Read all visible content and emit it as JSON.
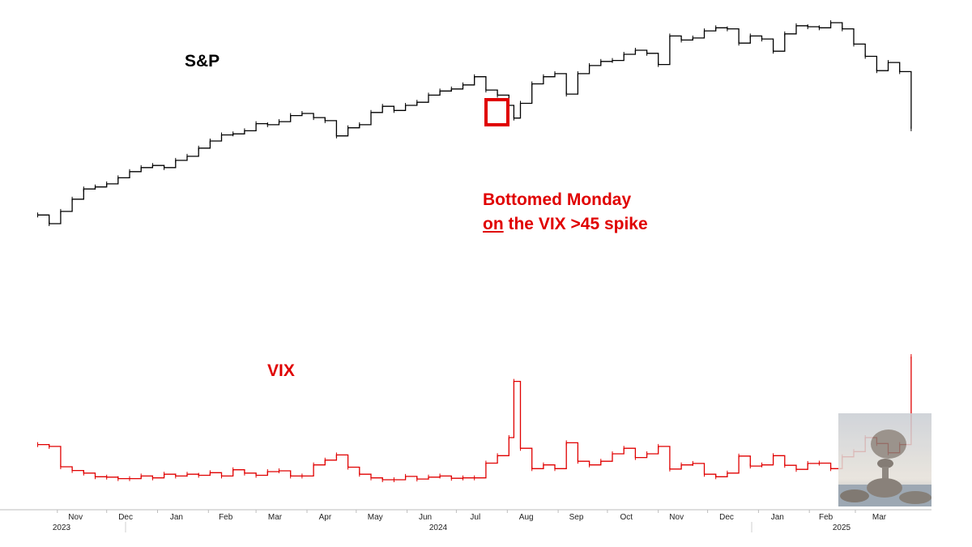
{
  "labels": {
    "sp": "S&P",
    "vix": "VIX",
    "annotation_line1": "Bottomed Monday",
    "annotation_line2_underlined": "on",
    "annotation_line2_rest": " the VIX >45 spike"
  },
  "colors": {
    "sp": "#000000",
    "vix": "#e00000",
    "annotation": "#e00000",
    "highlight_box": "#e00000"
  },
  "axis": {
    "months": [
      "Nov",
      "Dec",
      "Jan",
      "Feb",
      "Mar",
      "Apr",
      "May",
      "Jun",
      "Jul",
      "Aug",
      "Sep",
      "Oct",
      "Nov",
      "Dec",
      "Jan",
      "Feb",
      "Mar"
    ],
    "years": [
      "2023",
      "2024",
      "2025"
    ]
  },
  "thumbnail": {
    "icon": "balanced-rocks-photo"
  },
  "chart_data": {
    "type": "line",
    "x_range": [
      "2023-10",
      "2025-04"
    ],
    "series": [
      {
        "name": "S&P",
        "x": [
          "2023-10-20",
          "2023-10-27",
          "2023-11-03",
          "2023-11-10",
          "2023-11-17",
          "2023-11-24",
          "2023-12-01",
          "2023-12-08",
          "2023-12-15",
          "2023-12-22",
          "2023-12-29",
          "2024-01-05",
          "2024-01-12",
          "2024-01-19",
          "2024-01-26",
          "2024-02-02",
          "2024-02-09",
          "2024-02-16",
          "2024-02-23",
          "2024-03-01",
          "2024-03-08",
          "2024-03-15",
          "2024-03-22",
          "2024-03-29",
          "2024-04-05",
          "2024-04-12",
          "2024-04-19",
          "2024-04-26",
          "2024-05-03",
          "2024-05-10",
          "2024-05-17",
          "2024-05-24",
          "2024-05-31",
          "2024-06-07",
          "2024-06-14",
          "2024-06-21",
          "2024-06-28",
          "2024-07-05",
          "2024-07-12",
          "2024-07-19",
          "2024-07-26",
          "2024-08-02",
          "2024-08-05",
          "2024-08-09",
          "2024-08-16",
          "2024-08-23",
          "2024-08-30",
          "2024-09-06",
          "2024-09-13",
          "2024-09-20",
          "2024-09-27",
          "2024-10-04",
          "2024-10-11",
          "2024-10-18",
          "2024-10-25",
          "2024-11-01",
          "2024-11-08",
          "2024-11-15",
          "2024-11-22",
          "2024-11-29",
          "2024-12-06",
          "2024-12-13",
          "2024-12-20",
          "2024-12-27",
          "2025-01-03",
          "2025-01-10",
          "2025-01-17",
          "2025-01-24",
          "2025-01-31",
          "2025-02-07",
          "2025-02-14",
          "2025-02-21",
          "2025-02-28",
          "2025-03-07",
          "2025-03-14",
          "2025-03-21",
          "2025-03-28",
          "2025-04-04"
        ],
        "values": [
          4225,
          4140,
          4260,
          4380,
          4480,
          4500,
          4530,
          4590,
          4650,
          4690,
          4710,
          4690,
          4760,
          4800,
          4880,
          4950,
          5010,
          5020,
          5050,
          5120,
          5110,
          5140,
          5200,
          5220,
          5180,
          5150,
          5000,
          5080,
          5110,
          5230,
          5290,
          5250,
          5300,
          5330,
          5400,
          5440,
          5460,
          5500,
          5580,
          5450,
          5400,
          5300,
          5175,
          5320,
          5510,
          5580,
          5610,
          5410,
          5610,
          5690,
          5730,
          5740,
          5800,
          5840,
          5810,
          5700,
          5980,
          5940,
          5960,
          6030,
          6060,
          6050,
          5910,
          5980,
          5950,
          5830,
          6000,
          6080,
          6070,
          6060,
          6110,
          6050,
          5900,
          5780,
          5640,
          5720,
          5630,
          5070
        ]
      },
      {
        "name": "VIX",
        "x": [
          "2023-10-20",
          "2023-10-27",
          "2023-11-03",
          "2023-11-10",
          "2023-11-17",
          "2023-11-24",
          "2023-12-01",
          "2023-12-08",
          "2023-12-15",
          "2023-12-22",
          "2023-12-29",
          "2024-01-05",
          "2024-01-12",
          "2024-01-19",
          "2024-01-26",
          "2024-02-02",
          "2024-02-09",
          "2024-02-16",
          "2024-02-23",
          "2024-03-01",
          "2024-03-08",
          "2024-03-15",
          "2024-03-22",
          "2024-03-29",
          "2024-04-05",
          "2024-04-12",
          "2024-04-19",
          "2024-04-26",
          "2024-05-03",
          "2024-05-10",
          "2024-05-17",
          "2024-05-24",
          "2024-05-31",
          "2024-06-07",
          "2024-06-14",
          "2024-06-21",
          "2024-06-28",
          "2024-07-05",
          "2024-07-12",
          "2024-07-19",
          "2024-07-26",
          "2024-08-02",
          "2024-08-05",
          "2024-08-09",
          "2024-08-16",
          "2024-08-23",
          "2024-08-30",
          "2024-09-06",
          "2024-09-13",
          "2024-09-20",
          "2024-09-27",
          "2024-10-04",
          "2024-10-11",
          "2024-10-18",
          "2024-10-25",
          "2024-11-01",
          "2024-11-08",
          "2024-11-15",
          "2024-11-22",
          "2024-11-29",
          "2024-12-06",
          "2024-12-13",
          "2024-12-20",
          "2024-12-27",
          "2025-01-03",
          "2025-01-10",
          "2025-01-17",
          "2025-01-24",
          "2025-01-31",
          "2025-02-07",
          "2025-02-14",
          "2025-02-21",
          "2025-02-28",
          "2025-03-07",
          "2025-03-14",
          "2025-03-21",
          "2025-03-28",
          "2025-04-04"
        ],
        "values": [
          21.5,
          21,
          15.5,
          14.5,
          13.8,
          12.8,
          12.7,
          12.3,
          12.3,
          13,
          12.5,
          13.5,
          13,
          13.5,
          13.2,
          13.9,
          13,
          14.7,
          13.8,
          13.2,
          14.2,
          14.4,
          13,
          13,
          16,
          17.3,
          18.7,
          15.4,
          13.5,
          12.5,
          12,
          12,
          12.9,
          12.2,
          12.7,
          13,
          12.4,
          12.5,
          12.5,
          16.5,
          18.5,
          23.4,
          38.6,
          20.5,
          15,
          16,
          15,
          22,
          17,
          16,
          17,
          19,
          20.5,
          18,
          19,
          21,
          14.9,
          16,
          16.4,
          13.5,
          12.8,
          13.8,
          18.4,
          15.7,
          16,
          18.5,
          15.9,
          14.8,
          16.4,
          16.5,
          15,
          18.2,
          19.6,
          23.4,
          21.8,
          19.3,
          21.5,
          45.3
        ]
      }
    ],
    "annotations": [
      "Bottomed Monday",
      "on the VIX >45 spike"
    ],
    "grid": false,
    "legend": "none"
  }
}
